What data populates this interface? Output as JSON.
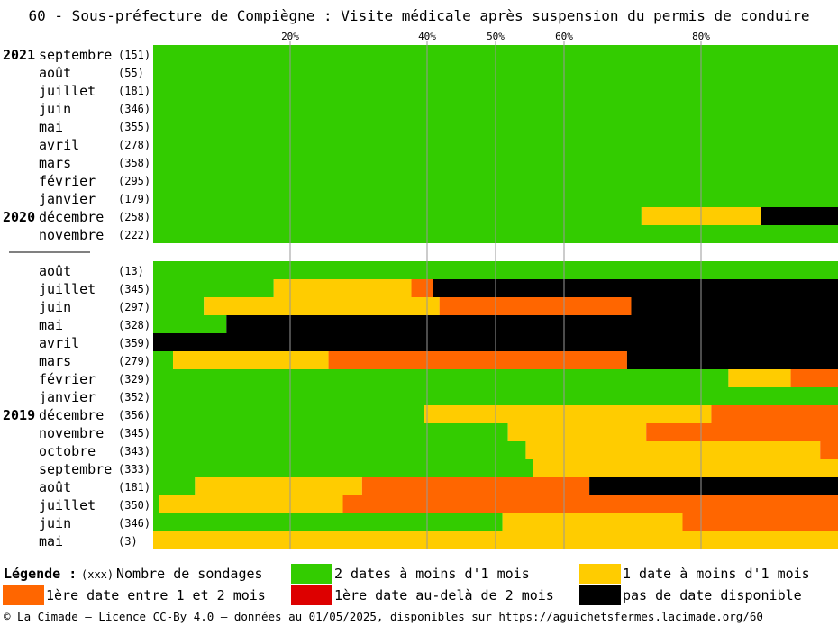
{
  "title": "60 - Sous-préfecture de Compiègne : Visite médicale après suspension du permis de conduire",
  "colors": {
    "green": "#33cc00",
    "yellow": "#ffcc00",
    "orange": "#ff6600",
    "red": "#dd0000",
    "black": "#000000",
    "grid": "#999999"
  },
  "chart_data": {
    "type": "bar",
    "orientation": "horizontal-stacked-percent",
    "xlim": [
      0,
      100
    ],
    "xticks": [
      "20%",
      "40%",
      "50%",
      "60%",
      "80%"
    ],
    "xtick_values": [
      20,
      40,
      50,
      60,
      80
    ],
    "grid": true,
    "series": [
      {
        "name": "2 dates à moins d'1 mois",
        "color": "green"
      },
      {
        "name": "1 date à moins d'1 mois",
        "color": "yellow"
      },
      {
        "name": "1ère date entre 1 et 2 mois",
        "color": "orange"
      },
      {
        "name": "1ère date au-delà de 2 mois",
        "color": "red"
      },
      {
        "name": "pas de date disponible",
        "color": "black"
      }
    ],
    "groups": [
      {
        "rows": [
          {
            "year": "2021",
            "month": "septembre",
            "count": "(151)",
            "values": [
              100,
              0,
              0,
              0,
              0
            ]
          },
          {
            "year": "",
            "month": "août",
            "count": "(55)",
            "values": [
              100,
              0,
              0,
              0,
              0
            ]
          },
          {
            "year": "",
            "month": "juillet",
            "count": "(181)",
            "values": [
              100,
              0,
              0,
              0,
              0
            ]
          },
          {
            "year": "",
            "month": "juin",
            "count": "(346)",
            "values": [
              100,
              0,
              0,
              0,
              0
            ]
          },
          {
            "year": "",
            "month": "mai",
            "count": "(355)",
            "values": [
              100,
              0,
              0,
              0,
              0
            ]
          },
          {
            "year": "",
            "month": "avril",
            "count": "(278)",
            "values": [
              100,
              0,
              0,
              0,
              0
            ]
          },
          {
            "year": "",
            "month": "mars",
            "count": "(358)",
            "values": [
              100,
              0,
              0,
              0,
              0
            ]
          },
          {
            "year": "",
            "month": "février",
            "count": "(295)",
            "values": [
              100,
              0,
              0,
              0,
              0
            ]
          },
          {
            "year": "",
            "month": "janvier",
            "count": "(179)",
            "values": [
              100,
              0,
              0,
              0,
              0
            ]
          },
          {
            "year": "2020",
            "month": "décembre",
            "count": "(258)",
            "values": [
              71.3,
              17.5,
              0,
              0,
              11.2
            ]
          },
          {
            "year": "",
            "month": "novembre",
            "count": "(222)",
            "values": [
              100,
              0,
              0,
              0,
              0
            ]
          }
        ]
      },
      {
        "rows": [
          {
            "year": "",
            "month": "août",
            "count": "(13)",
            "values": [
              100,
              0,
              0,
              0,
              0
            ]
          },
          {
            "year": "",
            "month": "juillet",
            "count": "(345)",
            "values": [
              17.6,
              20.1,
              3.2,
              0,
              59.1
            ]
          },
          {
            "year": "",
            "month": "juin",
            "count": "(297)",
            "values": [
              7.4,
              34.4,
              28.0,
              0,
              30.2
            ]
          },
          {
            "year": "",
            "month": "mai",
            "count": "(328)",
            "values": [
              10.7,
              0,
              0,
              0,
              89.3
            ]
          },
          {
            "year": "",
            "month": "avril",
            "count": "(359)",
            "values": [
              0,
              0,
              0,
              0,
              100
            ]
          },
          {
            "year": "",
            "month": "mars",
            "count": "(279)",
            "values": [
              2.9,
              22.7,
              43.6,
              0,
              30.8
            ]
          },
          {
            "year": "",
            "month": "février",
            "count": "(329)",
            "values": [
              84.0,
              9.1,
              6.9,
              0,
              0
            ]
          },
          {
            "year": "",
            "month": "janvier",
            "count": "(352)",
            "values": [
              100,
              0,
              0,
              0,
              0
            ]
          },
          {
            "year": "2019",
            "month": "décembre",
            "count": "(356)",
            "values": [
              39.5,
              42.0,
              18.5,
              0,
              0
            ]
          },
          {
            "year": "",
            "month": "novembre",
            "count": "(345)",
            "values": [
              51.8,
              20.2,
              28.0,
              0,
              0
            ]
          },
          {
            "year": "",
            "month": "octobre",
            "count": "(343)",
            "values": [
              54.4,
              43.0,
              2.6,
              0,
              0
            ]
          },
          {
            "year": "",
            "month": "septembre",
            "count": "(333)",
            "values": [
              55.5,
              44.5,
              0,
              0,
              0
            ]
          },
          {
            "year": "",
            "month": "août",
            "count": "(181)",
            "values": [
              6.1,
              24.4,
              33.2,
              0,
              36.3
            ]
          },
          {
            "year": "",
            "month": "juillet",
            "count": "(350)",
            "values": [
              0.9,
              26.8,
              72.3,
              0,
              0
            ]
          },
          {
            "year": "",
            "month": "juin",
            "count": "(346)",
            "values": [
              51.0,
              26.3,
              22.7,
              0,
              0
            ]
          },
          {
            "year": "",
            "month": "mai",
            "count": "(3)",
            "values": [
              0,
              100,
              0,
              0,
              0
            ]
          }
        ]
      }
    ]
  },
  "legend": {
    "title": "Légende :",
    "count_marker": "(xxx)",
    "count_label": "Nombre de sondages",
    "items": [
      {
        "label": "2 dates à moins d'1 mois",
        "color": "#33cc00"
      },
      {
        "label": "1 date à moins d'1 mois",
        "color": "#ffcc00"
      },
      {
        "label": "1ère date entre 1 et 2 mois",
        "color": "#ff6600"
      },
      {
        "label": "1ère date au-delà de 2 mois",
        "color": "#dd0000"
      },
      {
        "label": "pas de date disponible",
        "color": "#000000"
      }
    ]
  },
  "footer": "© La Cimade — Licence CC-By 4.0 — données au 01/05/2025, disponibles sur https://aguichetsfermes.lacimade.org/60"
}
